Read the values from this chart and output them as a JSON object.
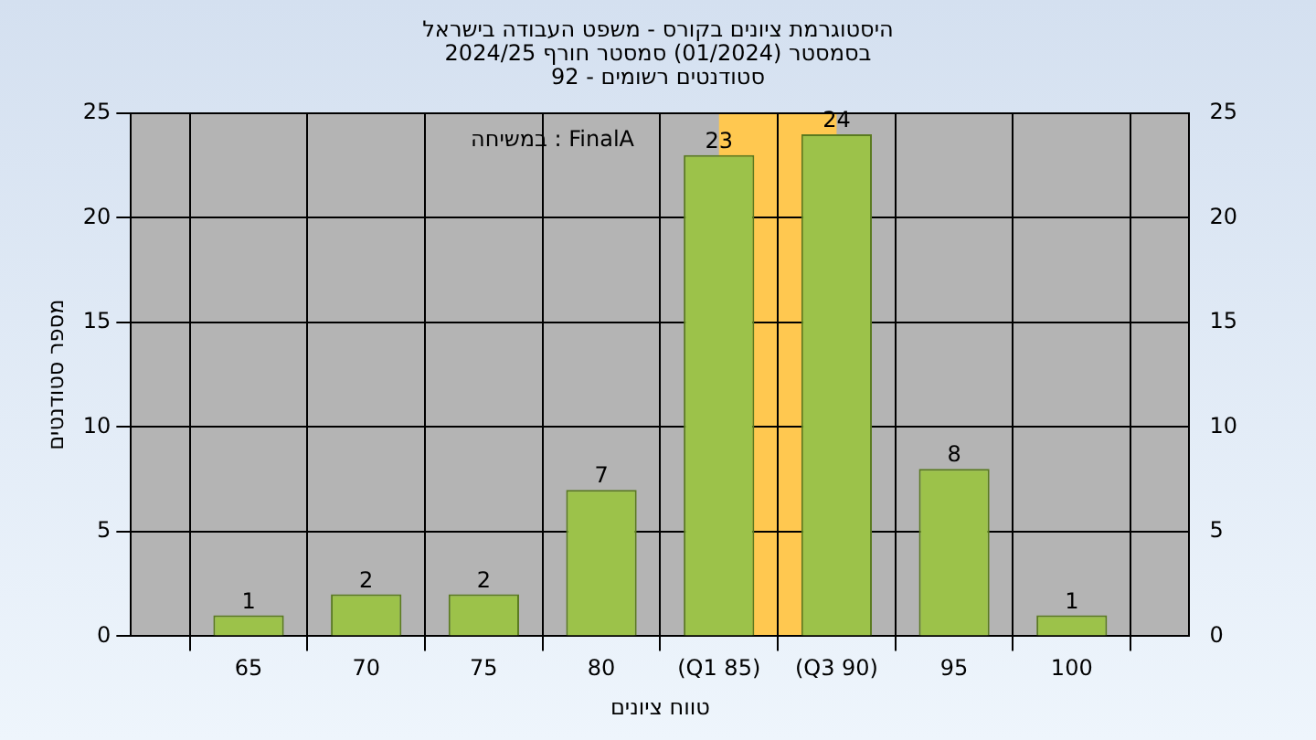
{
  "chart_data": {
    "type": "bar",
    "title": "היסטוגרמת ציונים בקורס - משפט העבודה בישראל",
    "subtitle": "בסמסטר  (01/2024)  סמסטר חורף 2024/25\nסטודנטים רשומים - 92",
    "xlabel": "טווח ציונים",
    "ylabel": "מספר סטודנטים",
    "annotations": [
      "במשיחה : FinalA"
    ],
    "categories": [
      null,
      "65",
      "70",
      "75",
      "80",
      "(Q1 85)",
      "(Q3 90)",
      "95",
      "100",
      null
    ],
    "values": [
      null,
      1,
      2,
      2,
      7,
      23,
      24,
      8,
      1,
      null
    ],
    "color": "#9cc24a",
    "ylim": [
      0,
      25
    ],
    "yticks": [
      0,
      5,
      10,
      15,
      20,
      25
    ],
    "y2lim": [
      0,
      25
    ],
    "y2ticks": [
      0,
      5,
      10,
      15,
      20,
      25
    ],
    "bands": [
      {
        "axis": "x",
        "from": "(Q1 85)",
        "to": "(Q3 90)",
        "color": "#ffc850"
      }
    ],
    "grid": true,
    "data_labels": true,
    "legend": false
  }
}
